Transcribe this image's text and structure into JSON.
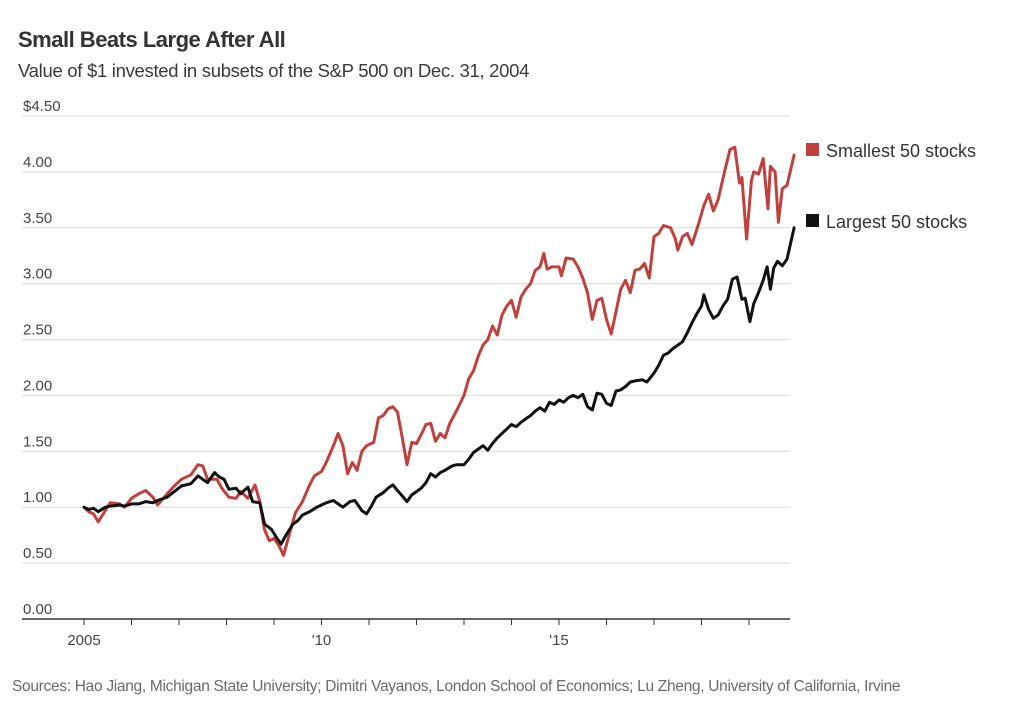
{
  "header": {
    "title": "Small Beats Large After All",
    "subtitle": "Value of $1 invested in subsets of the S&P 500 on Dec. 31, 2004"
  },
  "footer": {
    "source": "Sources: Hao Jiang, Michigan State University; Dimitri Vayanos, London School of Economics; Lu Zheng, University of California, Irvine"
  },
  "chart_data": {
    "type": "line",
    "title": "Small Beats Large After All",
    "subtitle": "Value of $1 invested in subsets of the S&P 500 on Dec. 31, 2004",
    "xlabel": "",
    "ylabel": "",
    "xlim": [
      2004.6,
      2019.75
    ],
    "ylim": [
      0,
      4.5
    ],
    "y_ticks": [
      0,
      0.5,
      1.0,
      1.5,
      2.0,
      2.5,
      3.0,
      3.5,
      4.0,
      4.5
    ],
    "y_tick_labels": [
      "0.00",
      "0.50",
      "1.00",
      "1.50",
      "2.00",
      "2.50",
      "3.00",
      "3.50",
      "4.00",
      "$4.50"
    ],
    "x_ticks": [
      2005,
      2006,
      2007,
      2008,
      2009,
      2010,
      2011,
      2012,
      2013,
      2014,
      2015,
      2016,
      2017,
      2018,
      2019
    ],
    "x_tick_labels": {
      "2005": "2005",
      "2010": "'10",
      "2015": "'15"
    },
    "grid": true,
    "legend_position": "right",
    "series": [
      {
        "name": "Smallest 50 stocks",
        "color": "#c0403d",
        "points": [
          [
            2005.0,
            1.0
          ],
          [
            2005.1,
            0.96
          ],
          [
            2005.2,
            0.94
          ],
          [
            2005.3,
            0.87
          ],
          [
            2005.45,
            0.97
          ],
          [
            2005.55,
            1.04
          ],
          [
            2005.75,
            1.03
          ],
          [
            2005.85,
            1.0
          ],
          [
            2006.0,
            1.08
          ],
          [
            2006.15,
            1.12
          ],
          [
            2006.3,
            1.15
          ],
          [
            2006.45,
            1.09
          ],
          [
            2006.55,
            1.02
          ],
          [
            2006.75,
            1.12
          ],
          [
            2006.9,
            1.19
          ],
          [
            2007.05,
            1.25
          ],
          [
            2007.25,
            1.29
          ],
          [
            2007.4,
            1.38
          ],
          [
            2007.5,
            1.37
          ],
          [
            2007.6,
            1.25
          ],
          [
            2007.8,
            1.25
          ],
          [
            2007.9,
            1.17
          ],
          [
            2008.05,
            1.09
          ],
          [
            2008.2,
            1.08
          ],
          [
            2008.3,
            1.14
          ],
          [
            2008.45,
            1.08
          ],
          [
            2008.6,
            1.2
          ],
          [
            2008.7,
            1.05
          ],
          [
            2008.8,
            0.8
          ],
          [
            2008.9,
            0.7
          ],
          [
            2009.0,
            0.72
          ],
          [
            2009.1,
            0.66
          ],
          [
            2009.2,
            0.57
          ],
          [
            2009.35,
            0.8
          ],
          [
            2009.45,
            0.95
          ],
          [
            2009.6,
            1.05
          ],
          [
            2009.75,
            1.2
          ],
          [
            2009.85,
            1.28
          ],
          [
            2010.0,
            1.32
          ],
          [
            2010.1,
            1.4
          ],
          [
            2010.25,
            1.55
          ],
          [
            2010.35,
            1.66
          ],
          [
            2010.45,
            1.55
          ],
          [
            2010.55,
            1.3
          ],
          [
            2010.65,
            1.4
          ],
          [
            2010.75,
            1.33
          ],
          [
            2010.85,
            1.5
          ],
          [
            2010.95,
            1.55
          ],
          [
            2011.1,
            1.58
          ],
          [
            2011.2,
            1.8
          ],
          [
            2011.3,
            1.82
          ],
          [
            2011.4,
            1.88
          ],
          [
            2011.5,
            1.9
          ],
          [
            2011.6,
            1.85
          ],
          [
            2011.7,
            1.62
          ],
          [
            2011.8,
            1.38
          ],
          [
            2011.9,
            1.58
          ],
          [
            2012.0,
            1.57
          ],
          [
            2012.1,
            1.65
          ],
          [
            2012.2,
            1.74
          ],
          [
            2012.3,
            1.75
          ],
          [
            2012.4,
            1.59
          ],
          [
            2012.5,
            1.66
          ],
          [
            2012.6,
            1.62
          ],
          [
            2012.7,
            1.75
          ],
          [
            2012.85,
            1.87
          ],
          [
            2013.0,
            2.0
          ],
          [
            2013.1,
            2.15
          ],
          [
            2013.2,
            2.22
          ],
          [
            2013.3,
            2.35
          ],
          [
            2013.4,
            2.45
          ],
          [
            2013.5,
            2.5
          ],
          [
            2013.6,
            2.62
          ],
          [
            2013.7,
            2.54
          ],
          [
            2013.8,
            2.72
          ],
          [
            2013.9,
            2.8
          ],
          [
            2014.0,
            2.85
          ],
          [
            2014.1,
            2.7
          ],
          [
            2014.2,
            2.88
          ],
          [
            2014.3,
            2.95
          ],
          [
            2014.4,
            3.0
          ],
          [
            2014.5,
            3.12
          ],
          [
            2014.6,
            3.15
          ],
          [
            2014.68,
            3.27
          ],
          [
            2014.75,
            3.13
          ],
          [
            2014.85,
            3.15
          ],
          [
            2015.0,
            3.15
          ],
          [
            2015.05,
            3.07
          ],
          [
            2015.15,
            3.23
          ],
          [
            2015.3,
            3.22
          ],
          [
            2015.4,
            3.15
          ],
          [
            2015.5,
            3.05
          ],
          [
            2015.6,
            2.92
          ],
          [
            2015.7,
            2.68
          ],
          [
            2015.8,
            2.85
          ],
          [
            2015.9,
            2.87
          ],
          [
            2016.0,
            2.68
          ],
          [
            2016.1,
            2.55
          ],
          [
            2016.2,
            2.75
          ],
          [
            2016.3,
            2.95
          ],
          [
            2016.4,
            3.03
          ],
          [
            2016.5,
            2.92
          ],
          [
            2016.6,
            3.12
          ],
          [
            2016.7,
            3.13
          ],
          [
            2016.8,
            3.18
          ],
          [
            2016.9,
            3.05
          ],
          [
            2017.0,
            3.42
          ],
          [
            2017.1,
            3.45
          ],
          [
            2017.2,
            3.52
          ],
          [
            2017.35,
            3.5
          ],
          [
            2017.45,
            3.4
          ],
          [
            2017.5,
            3.3
          ],
          [
            2017.6,
            3.42
          ],
          [
            2017.7,
            3.45
          ],
          [
            2017.8,
            3.35
          ],
          [
            2017.95,
            3.55
          ],
          [
            2018.05,
            3.7
          ],
          [
            2018.15,
            3.8
          ],
          [
            2018.25,
            3.65
          ],
          [
            2018.35,
            3.75
          ],
          [
            2018.5,
            4.03
          ],
          [
            2018.6,
            4.2
          ],
          [
            2018.7,
            4.22
          ],
          [
            2018.8,
            3.9
          ],
          [
            2018.85,
            3.95
          ],
          [
            2018.95,
            3.4
          ],
          [
            2019.05,
            3.92
          ],
          [
            2019.1,
            4.0
          ],
          [
            2019.2,
            3.98
          ],
          [
            2019.3,
            4.12
          ],
          [
            2019.4,
            3.67
          ],
          [
            2019.45,
            4.05
          ],
          [
            2019.55,
            4.0
          ],
          [
            2019.62,
            3.55
          ],
          [
            2019.7,
            3.85
          ],
          [
            2019.8,
            3.88
          ],
          [
            2019.95,
            4.15
          ]
        ]
      },
      {
        "name": "Largest 50 stocks",
        "color": "#111111",
        "points": [
          [
            2005.0,
            1.0
          ],
          [
            2005.1,
            0.98
          ],
          [
            2005.2,
            0.99
          ],
          [
            2005.3,
            0.96
          ],
          [
            2005.45,
            1.0
          ],
          [
            2005.55,
            1.01
          ],
          [
            2005.75,
            1.02
          ],
          [
            2005.85,
            1.01
          ],
          [
            2006.0,
            1.03
          ],
          [
            2006.15,
            1.03
          ],
          [
            2006.3,
            1.05
          ],
          [
            2006.45,
            1.04
          ],
          [
            2006.55,
            1.06
          ],
          [
            2006.75,
            1.09
          ],
          [
            2006.9,
            1.14
          ],
          [
            2007.05,
            1.19
          ],
          [
            2007.25,
            1.21
          ],
          [
            2007.4,
            1.28
          ],
          [
            2007.5,
            1.25
          ],
          [
            2007.6,
            1.22
          ],
          [
            2007.75,
            1.31
          ],
          [
            2007.85,
            1.27
          ],
          [
            2007.95,
            1.25
          ],
          [
            2008.05,
            1.16
          ],
          [
            2008.2,
            1.17
          ],
          [
            2008.3,
            1.12
          ],
          [
            2008.45,
            1.18
          ],
          [
            2008.55,
            1.05
          ],
          [
            2008.7,
            1.04
          ],
          [
            2008.8,
            0.85
          ],
          [
            2008.95,
            0.8
          ],
          [
            2009.05,
            0.73
          ],
          [
            2009.15,
            0.67
          ],
          [
            2009.25,
            0.75
          ],
          [
            2009.4,
            0.85
          ],
          [
            2009.5,
            0.88
          ],
          [
            2009.6,
            0.93
          ],
          [
            2009.75,
            0.96
          ],
          [
            2009.9,
            1.0
          ],
          [
            2010.0,
            1.02
          ],
          [
            2010.1,
            1.04
          ],
          [
            2010.25,
            1.06
          ],
          [
            2010.35,
            1.03
          ],
          [
            2010.45,
            1.0
          ],
          [
            2010.6,
            1.05
          ],
          [
            2010.7,
            1.06
          ],
          [
            2010.85,
            0.97
          ],
          [
            2010.95,
            0.94
          ],
          [
            2011.05,
            1.01
          ],
          [
            2011.15,
            1.09
          ],
          [
            2011.3,
            1.13
          ],
          [
            2011.4,
            1.17
          ],
          [
            2011.5,
            1.2
          ],
          [
            2011.6,
            1.15
          ],
          [
            2011.7,
            1.1
          ],
          [
            2011.8,
            1.05
          ],
          [
            2011.9,
            1.11
          ],
          [
            2012.0,
            1.14
          ],
          [
            2012.1,
            1.17
          ],
          [
            2012.2,
            1.22
          ],
          [
            2012.3,
            1.3
          ],
          [
            2012.4,
            1.27
          ],
          [
            2012.5,
            1.31
          ],
          [
            2012.6,
            1.33
          ],
          [
            2012.75,
            1.37
          ],
          [
            2012.85,
            1.38
          ],
          [
            2013.0,
            1.38
          ],
          [
            2013.1,
            1.43
          ],
          [
            2013.2,
            1.49
          ],
          [
            2013.3,
            1.52
          ],
          [
            2013.4,
            1.55
          ],
          [
            2013.5,
            1.51
          ],
          [
            2013.6,
            1.57
          ],
          [
            2013.7,
            1.62
          ],
          [
            2013.8,
            1.66
          ],
          [
            2013.9,
            1.7
          ],
          [
            2014.0,
            1.74
          ],
          [
            2014.1,
            1.72
          ],
          [
            2014.2,
            1.76
          ],
          [
            2014.3,
            1.79
          ],
          [
            2014.4,
            1.82
          ],
          [
            2014.5,
            1.86
          ],
          [
            2014.6,
            1.89
          ],
          [
            2014.7,
            1.86
          ],
          [
            2014.8,
            1.94
          ],
          [
            2014.9,
            1.92
          ],
          [
            2015.0,
            1.96
          ],
          [
            2015.1,
            1.94
          ],
          [
            2015.2,
            1.98
          ],
          [
            2015.3,
            2.0
          ],
          [
            2015.4,
            1.98
          ],
          [
            2015.5,
            2.01
          ],
          [
            2015.6,
            1.9
          ],
          [
            2015.7,
            1.87
          ],
          [
            2015.8,
            2.02
          ],
          [
            2015.9,
            2.01
          ],
          [
            2016.0,
            1.93
          ],
          [
            2016.1,
            1.91
          ],
          [
            2016.2,
            2.04
          ],
          [
            2016.3,
            2.05
          ],
          [
            2016.4,
            2.08
          ],
          [
            2016.5,
            2.12
          ],
          [
            2016.6,
            2.13
          ],
          [
            2016.75,
            2.14
          ],
          [
            2016.85,
            2.12
          ],
          [
            2017.0,
            2.2
          ],
          [
            2017.1,
            2.27
          ],
          [
            2017.2,
            2.36
          ],
          [
            2017.3,
            2.38
          ],
          [
            2017.4,
            2.42
          ],
          [
            2017.5,
            2.45
          ],
          [
            2017.6,
            2.48
          ],
          [
            2017.7,
            2.56
          ],
          [
            2017.8,
            2.65
          ],
          [
            2017.9,
            2.73
          ],
          [
            2018.0,
            2.8
          ],
          [
            2018.05,
            2.9
          ],
          [
            2018.15,
            2.77
          ],
          [
            2018.25,
            2.69
          ],
          [
            2018.35,
            2.72
          ],
          [
            2018.45,
            2.8
          ],
          [
            2018.55,
            2.86
          ],
          [
            2018.65,
            3.04
          ],
          [
            2018.75,
            3.06
          ],
          [
            2018.85,
            2.86
          ],
          [
            2018.92,
            2.87
          ],
          [
            2019.02,
            2.66
          ],
          [
            2019.1,
            2.82
          ],
          [
            2019.2,
            2.92
          ],
          [
            2019.3,
            3.03
          ],
          [
            2019.38,
            3.15
          ],
          [
            2019.45,
            2.95
          ],
          [
            2019.52,
            3.14
          ],
          [
            2019.6,
            3.2
          ],
          [
            2019.7,
            3.16
          ],
          [
            2019.8,
            3.22
          ],
          [
            2019.95,
            3.5
          ]
        ]
      }
    ]
  }
}
